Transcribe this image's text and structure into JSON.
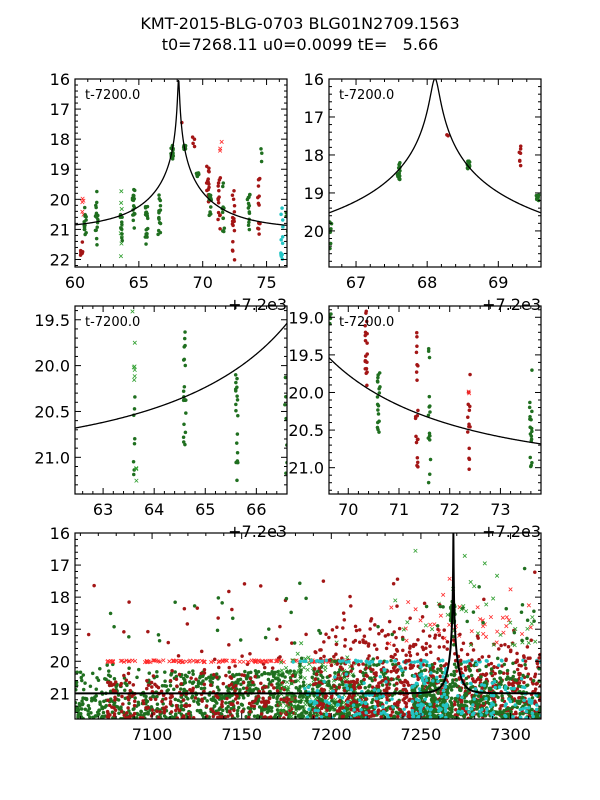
{
  "title_line1": "KMT-2015-BLG-0703 BLG01N2709.1563",
  "title_line2": "t0=7268.11 u0=0.0099 tE=   5.66",
  "colors": {
    "green": "#1f6f1f",
    "darkred": "#a31515",
    "red_x": "#ff2a2a",
    "green_x": "#2e9e2e",
    "cyan": "#22c4c4",
    "model": "#000000"
  },
  "chart_data": [
    {
      "type": "scatter",
      "id": "panel1",
      "annotation": "t-7200.0",
      "offset_label": "+7.2e3",
      "xlim": [
        60.0,
        76.6
      ],
      "ylim": [
        22.25,
        16.0
      ],
      "xticks": [
        60,
        65,
        70,
        75
      ],
      "yticks": [
        16,
        17,
        18,
        19,
        20,
        21,
        22
      ],
      "ytick_labels": [
        "16",
        "17",
        "18",
        "19",
        "20",
        "21",
        "22"
      ],
      "model": {
        "t0": 68.11,
        "u0": 0.0099,
        "tE": 5.66,
        "base_mag": 21.0
      },
      "clusters": [
        {
          "series": "darkred",
          "x": 60.5,
          "ymin": 21.3,
          "ymax": 22.0,
          "n": 8
        },
        {
          "series": "red_x",
          "x": 60.6,
          "ymin": 19.9,
          "ymax": 20.6,
          "n": 5
        },
        {
          "series": "green",
          "x": 60.8,
          "ymin": 20.1,
          "ymax": 21.2,
          "n": 14
        },
        {
          "series": "green",
          "x": 61.7,
          "ymin": 19.7,
          "ymax": 21.7,
          "n": 16
        },
        {
          "series": "green_x",
          "x": 63.6,
          "ymin": 19.7,
          "ymax": 21.9,
          "n": 8
        },
        {
          "series": "green",
          "x": 63.6,
          "ymin": 20.5,
          "ymax": 21.6,
          "n": 10
        },
        {
          "series": "green",
          "x": 64.6,
          "ymin": 19.5,
          "ymax": 21.0,
          "n": 18
        },
        {
          "series": "green",
          "x": 65.6,
          "ymin": 20.1,
          "ymax": 21.6,
          "n": 18
        },
        {
          "series": "green",
          "x": 66.6,
          "ymin": 19.8,
          "ymax": 21.2,
          "n": 16
        },
        {
          "series": "green",
          "x": 67.6,
          "ymin": 18.2,
          "ymax": 18.7,
          "n": 16
        },
        {
          "series": "darkred",
          "x": 68.3,
          "ymin": 17.45,
          "ymax": 17.5,
          "n": 1
        },
        {
          "series": "green",
          "x": 68.6,
          "ymin": 18.2,
          "ymax": 18.35,
          "n": 14
        },
        {
          "series": "darkred",
          "x": 69.3,
          "ymin": 17.7,
          "ymax": 18.25,
          "n": 4
        },
        {
          "series": "green",
          "x": 69.6,
          "ymin": 19.1,
          "ymax": 19.25,
          "n": 10
        },
        {
          "series": "darkred",
          "x": 70.4,
          "ymin": 18.9,
          "ymax": 20.1,
          "n": 16
        },
        {
          "series": "green",
          "x": 70.6,
          "ymin": 19.8,
          "ymax": 20.6,
          "n": 14
        },
        {
          "series": "darkred",
          "x": 71.3,
          "ymin": 19.2,
          "ymax": 21.1,
          "n": 14
        },
        {
          "series": "red_x",
          "x": 71.4,
          "ymin": 18.0,
          "ymax": 18.4,
          "n": 3
        },
        {
          "series": "green",
          "x": 71.6,
          "ymin": 19.4,
          "ymax": 21.3,
          "n": 12
        },
        {
          "series": "darkred",
          "x": 72.4,
          "ymin": 19.7,
          "ymax": 22.1,
          "n": 16
        },
        {
          "series": "green",
          "x": 73.6,
          "ymin": 19.8,
          "ymax": 21.1,
          "n": 14
        },
        {
          "series": "darkred",
          "x": 74.4,
          "ymin": 19.3,
          "ymax": 21.2,
          "n": 14
        },
        {
          "series": "green",
          "x": 74.6,
          "ymin": 18.3,
          "ymax": 19.2,
          "n": 3
        },
        {
          "series": "cyan",
          "x": 76.2,
          "ymin": 20.0,
          "ymax": 22.2,
          "n": 12
        },
        {
          "series": "green",
          "x": 76.6,
          "ymin": 20.3,
          "ymax": 21.2,
          "n": 6
        }
      ]
    },
    {
      "type": "scatter",
      "id": "panel2",
      "annotation": "t-7200.0",
      "offset_label": "+7.2e3",
      "xlim": [
        66.62,
        69.6
      ],
      "ylim": [
        20.95,
        16.0
      ],
      "xticks": [
        67,
        68,
        69
      ],
      "yticks": [
        16,
        17,
        18,
        19,
        20
      ],
      "ytick_labels": [
        "16",
        "17",
        "18",
        "19",
        "20"
      ],
      "model": {
        "t0": 68.11,
        "u0": 0.0099,
        "tE": 5.66,
        "base_mag": 21.0
      },
      "clusters": [
        {
          "series": "green",
          "x": 66.64,
          "ymin": 19.45,
          "ymax": 20.85,
          "n": 7
        },
        {
          "series": "green",
          "x": 67.6,
          "ymin": 18.2,
          "ymax": 18.65,
          "n": 18
        },
        {
          "series": "darkred",
          "x": 68.28,
          "ymin": 17.45,
          "ymax": 17.5,
          "n": 2
        },
        {
          "series": "green",
          "x": 68.58,
          "ymin": 18.15,
          "ymax": 18.38,
          "n": 18
        },
        {
          "series": "darkred",
          "x": 69.3,
          "ymin": 17.7,
          "ymax": 18.3,
          "n": 7
        },
        {
          "series": "green",
          "x": 69.55,
          "ymin": 19.05,
          "ymax": 19.3,
          "n": 10
        }
      ]
    },
    {
      "type": "scatter",
      "id": "panel3",
      "annotation": "t-7200.0",
      "offset_label": "+7.2e3",
      "xlim": [
        62.45,
        66.6
      ],
      "ylim": [
        21.4,
        19.35
      ],
      "xticks": [
        63,
        64,
        65,
        66
      ],
      "yticks": [
        19.5,
        20.0,
        20.5,
        21.0
      ],
      "ytick_labels": [
        "19.5",
        "20.0",
        "20.5",
        "21.0"
      ],
      "model": {
        "t0": 68.11,
        "u0": 0.0099,
        "tE": 5.66,
        "base_mag": 21.0
      },
      "clusters": [
        {
          "series": "green_x",
          "x": 63.6,
          "ymin": 19.4,
          "ymax": 20.25,
          "n": 7
        },
        {
          "series": "green",
          "x": 63.62,
          "ymin": 20.3,
          "ymax": 21.35,
          "n": 8
        },
        {
          "series": "green_x",
          "x": 63.65,
          "ymin": 21.05,
          "ymax": 21.35,
          "n": 3
        },
        {
          "series": "green",
          "x": 64.6,
          "ymin": 19.55,
          "ymax": 20.95,
          "n": 20
        },
        {
          "series": "green",
          "x": 65.62,
          "ymin": 20.1,
          "ymax": 21.4,
          "n": 18
        },
        {
          "series": "green",
          "x": 66.58,
          "ymin": 20.1,
          "ymax": 21.3,
          "n": 8
        }
      ]
    },
    {
      "type": "scatter",
      "id": "panel4",
      "annotation": "t-7200.0",
      "offset_label": "+7.2e3",
      "xlim": [
        69.62,
        73.8
      ],
      "ylim": [
        21.35,
        18.85
      ],
      "xticks": [
        70,
        71,
        72,
        73
      ],
      "yticks": [
        19.0,
        19.5,
        20.0,
        20.5,
        21.0
      ],
      "ytick_labels": [
        "19.0",
        "19.5",
        "20.0",
        "20.5",
        "21.0"
      ],
      "model": {
        "t0": 68.11,
        "u0": 0.0099,
        "tE": 5.66,
        "base_mag": 21.0
      },
      "clusters": [
        {
          "series": "green",
          "x": 69.65,
          "ymin": 18.95,
          "ymax": 19.1,
          "n": 4
        },
        {
          "series": "darkred",
          "x": 70.35,
          "ymin": 18.9,
          "ymax": 19.95,
          "n": 20
        },
        {
          "series": "green",
          "x": 70.6,
          "ymin": 19.7,
          "ymax": 20.6,
          "n": 18
        },
        {
          "series": "darkred",
          "x": 71.35,
          "ymin": 19.1,
          "ymax": 21.05,
          "n": 20
        },
        {
          "series": "green",
          "x": 71.6,
          "ymin": 19.35,
          "ymax": 21.25,
          "n": 16
        },
        {
          "series": "darkred",
          "x": 72.38,
          "ymin": 19.65,
          "ymax": 21.1,
          "n": 14
        },
        {
          "series": "red_x",
          "x": 72.38,
          "ymin": 19.98,
          "ymax": 20.02,
          "n": 2
        },
        {
          "series": "green",
          "x": 73.6,
          "ymin": 19.7,
          "ymax": 21.2,
          "n": 18
        }
      ]
    },
    {
      "type": "scatter",
      "id": "panel5",
      "annotation": "",
      "offset_label": "",
      "xlim": [
        7057,
        7317
      ],
      "ylim": [
        21.8,
        16.0
      ],
      "xticks": [
        7100,
        7150,
        7200,
        7250,
        7300
      ],
      "yticks": [
        16,
        17,
        18,
        19,
        20,
        21
      ],
      "ytick_labels": [
        "16",
        "17",
        "18",
        "19",
        "20",
        "21"
      ],
      "model": {
        "t0": 7268.11,
        "u0": 0.0099,
        "tE": 5.66,
        "base_mag": 21.0
      },
      "bands": [
        {
          "series": "green",
          "xmin": 7057,
          "xmax": 7110,
          "ymin": 20.0,
          "ymax": 21.8,
          "n": 220
        },
        {
          "series": "darkred",
          "xmin": 7075,
          "xmax": 7108,
          "ymin": 20.0,
          "ymax": 21.8,
          "n": 90
        },
        {
          "series": "red_x",
          "xmin": 7075,
          "xmax": 7150,
          "ymin": 19.97,
          "ymax": 20.03,
          "n": 70
        },
        {
          "series": "green",
          "xmin": 7110,
          "xmax": 7180,
          "ymin": 20.3,
          "ymax": 21.8,
          "n": 420
        },
        {
          "series": "darkred",
          "xmin": 7110,
          "xmax": 7180,
          "ymin": 19.5,
          "ymax": 21.8,
          "n": 180
        },
        {
          "series": "red_x",
          "xmin": 7150,
          "xmax": 7210,
          "ymin": 19.97,
          "ymax": 20.03,
          "n": 60
        },
        {
          "series": "green_x",
          "xmin": 7170,
          "xmax": 7215,
          "ymin": 19.3,
          "ymax": 21.8,
          "n": 160
        },
        {
          "series": "green",
          "xmin": 7180,
          "xmax": 7240,
          "ymin": 19.8,
          "ymax": 21.8,
          "n": 420
        },
        {
          "series": "darkred",
          "xmin": 7190,
          "xmax": 7240,
          "ymin": 18.4,
          "ymax": 21.8,
          "n": 260
        },
        {
          "series": "cyan",
          "xmin": 7185,
          "xmax": 7245,
          "ymin": 19.8,
          "ymax": 21.8,
          "n": 90
        },
        {
          "series": "cyan",
          "xmin": 7178,
          "xmax": 7317,
          "ymin": 19.97,
          "ymax": 20.03,
          "n": 60
        },
        {
          "series": "darkred",
          "xmin": 7240,
          "xmax": 7265,
          "ymin": 19.0,
          "ymax": 21.8,
          "n": 200
        },
        {
          "series": "green",
          "xmin": 7245,
          "xmax": 7268,
          "ymin": 20.0,
          "ymax": 21.8,
          "n": 220
        },
        {
          "series": "cyan",
          "xmin": 7245,
          "xmax": 7265,
          "ymin": 19.8,
          "ymax": 21.8,
          "n": 80
        },
        {
          "series": "darkred",
          "xmin": 7268,
          "xmax": 7317,
          "ymin": 19.0,
          "ymax": 21.8,
          "n": 280
        },
        {
          "series": "green",
          "xmin": 7268,
          "xmax": 7317,
          "ymin": 19.8,
          "ymax": 21.8,
          "n": 260
        },
        {
          "series": "cyan",
          "xmin": 7270,
          "xmax": 7317,
          "ymin": 20.0,
          "ymax": 21.8,
          "n": 80
        },
        {
          "series": "red_x",
          "xmin": 7230,
          "xmax": 7315,
          "ymin": 17.2,
          "ymax": 19.5,
          "n": 40
        },
        {
          "series": "green_x",
          "xmin": 7230,
          "xmax": 7315,
          "ymin": 16.2,
          "ymax": 19.5,
          "n": 35
        },
        {
          "series": "darkred",
          "xmin": 7060,
          "xmax": 7317,
          "ymin": 17.1,
          "ymax": 19.5,
          "n": 45
        },
        {
          "series": "green",
          "xmin": 7060,
          "xmax": 7317,
          "ymin": 17.0,
          "ymax": 19.5,
          "n": 45
        },
        {
          "series": "green",
          "xmin": 7266.5,
          "xmax": 7269,
          "ymin": 18.1,
          "ymax": 18.8,
          "n": 40
        }
      ]
    }
  ]
}
